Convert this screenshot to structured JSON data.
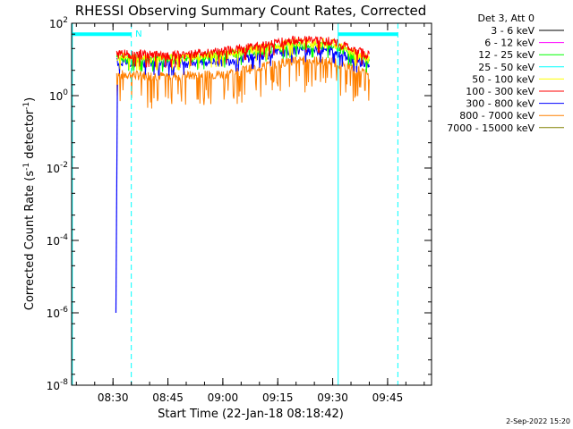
{
  "chart_data": {
    "type": "line",
    "title": "RHESSI Observing Summary Count Rates, Corrected",
    "xlabel": "Start Time (22-Jan-18 08:18:42)",
    "ylabel_main": "Corrected Count Rate (s",
    "ylabel_sup1": "-1",
    "ylabel_mid": " detector",
    "ylabel_sup2": "-1",
    "ylabel_end": ")",
    "ylog": true,
    "ylim": [
      1e-08,
      100
    ],
    "xlim_minutes": [
      18.7,
      117.0
    ],
    "x_ticks": [
      {
        "label": "08:30",
        "minute": 30
      },
      {
        "label": "08:45",
        "minute": 45
      },
      {
        "label": "09:00",
        "minute": 60
      },
      {
        "label": "09:15",
        "minute": 75
      },
      {
        "label": "09:30",
        "minute": 90
      },
      {
        "label": "09:45",
        "minute": 105
      }
    ],
    "y_ticks": [
      {
        "base": "10",
        "exp": "2",
        "value": 100
      },
      {
        "base": "10",
        "exp": "0",
        "value": 1
      },
      {
        "base": "10",
        "exp": "-2",
        "value": 0.01
      },
      {
        "base": "10",
        "exp": "-4",
        "value": 0.0001
      },
      {
        "base": "10",
        "exp": "-6",
        "value": 1e-06
      },
      {
        "base": "10",
        "exp": "-8",
        "value": 1e-08
      }
    ],
    "legend_title": "Det 3, Att 0",
    "legend_position": "right",
    "series": [
      {
        "name": "3 - 6 keV",
        "color": "#000000",
        "level": [
          12,
          14,
          18,
          28,
          22,
          8
        ],
        "drawn": false
      },
      {
        "name": "6 - 12 keV",
        "color": "#ff00ff",
        "level": [
          10,
          12,
          15,
          24,
          20,
          7
        ],
        "drawn": false
      },
      {
        "name": "12 - 25 keV",
        "color": "#00ff00",
        "level": [
          11,
          10,
          13,
          26,
          24,
          9
        ],
        "drawn": true
      },
      {
        "name": "25 - 50 keV",
        "color": "#00ffff",
        "level": [
          10,
          9,
          12,
          22,
          20,
          8
        ],
        "drawn": false
      },
      {
        "name": "50 - 100 keV",
        "color": "#ffff00",
        "level": [
          12,
          11,
          14,
          30,
          28,
          10
        ],
        "drawn": true
      },
      {
        "name": "100 - 300 keV",
        "color": "#ff0000",
        "level": [
          15,
          13,
          17,
          36,
          32,
          13
        ],
        "drawn": true
      },
      {
        "name": "300 - 800 keV",
        "color": "#0000ff",
        "level": [
          9,
          8,
          9,
          19,
          18,
          7
        ],
        "drawn": true
      },
      {
        "name": "800 - 7000 keV",
        "color": "#ff8000",
        "level": [
          4,
          3.5,
          4,
          10,
          9,
          4
        ],
        "drawn": true
      },
      {
        "name": "7000 - 15000 keV",
        "color": "#808000",
        "level": [
          0,
          0,
          0,
          0,
          0,
          0
        ],
        "drawn": false
      }
    ],
    "level_minutes": [
      31,
      45,
      60,
      80,
      90,
      100
    ],
    "data_start_minute": 31,
    "data_end_minute": 100,
    "blue_rise": {
      "start_minute": 30.8,
      "start_value": 1e-06,
      "end_minute": 31.2,
      "end_value": 2
    },
    "night_markers": [
      {
        "type": "solid",
        "minute": 18.9
      },
      {
        "type": "dashed",
        "minute": 35.0
      },
      {
        "type": "solid",
        "minute": 91.5
      },
      {
        "type": "dashed",
        "minute": 107.8
      }
    ],
    "night_bars": [
      {
        "start_minute": 18.9,
        "end_minute": 35.0,
        "value": 50
      },
      {
        "start_minute": 91.5,
        "end_minute": 107.8,
        "value": 50
      }
    ],
    "flag_label": "N",
    "flag_minute": 37
  },
  "footer": {
    "date_stamp": "2-Sep-2022 15:20"
  }
}
